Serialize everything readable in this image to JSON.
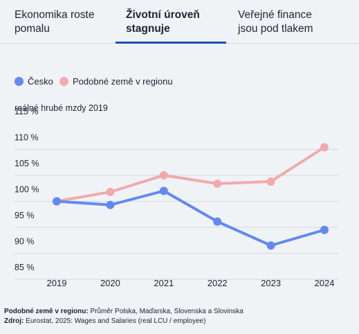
{
  "tabs": [
    {
      "label": "Ekonomika roste\npomalu",
      "active": false
    },
    {
      "label": "Životní úroveň\nstagnuje",
      "active": true
    },
    {
      "label": "Veřejné finance\njsou pod tlakem",
      "active": false
    }
  ],
  "colors": {
    "accent": "#1a4fb4",
    "cesko": "#6389f0",
    "region": "#f0aaac"
  },
  "chart_data": {
    "type": "line",
    "ylabel": "reálné hrubé mzdy 2019",
    "x": [
      "2019",
      "2020",
      "2021",
      "2022",
      "2023",
      "2024"
    ],
    "yticks": [
      "115 %",
      "110 %",
      "105 %",
      "100 %",
      "95 %",
      "90 %",
      "85  %"
    ],
    "ylim": [
      85,
      115
    ],
    "grid": true,
    "legend_position": "top-left",
    "series": [
      {
        "name": "Česko",
        "color": "#6389f0",
        "values": [
          100,
          99.3,
          102,
          96.1,
          91.5,
          94.5
        ]
      },
      {
        "name": "Podobné země v regionu",
        "color": "#f0aaac",
        "values": [
          100,
          101.8,
          105,
          103.4,
          103.8,
          110.4
        ]
      }
    ]
  },
  "notes": {
    "region_label": "Podobné země v regionu:",
    "region_text": " Průměr Polska, Maďarska, Slovenska a Slovinska",
    "source_label": "Zdroj:",
    "source_text": " Eurostat, 2025: Wages and Salaries (real LCU / employee)"
  }
}
